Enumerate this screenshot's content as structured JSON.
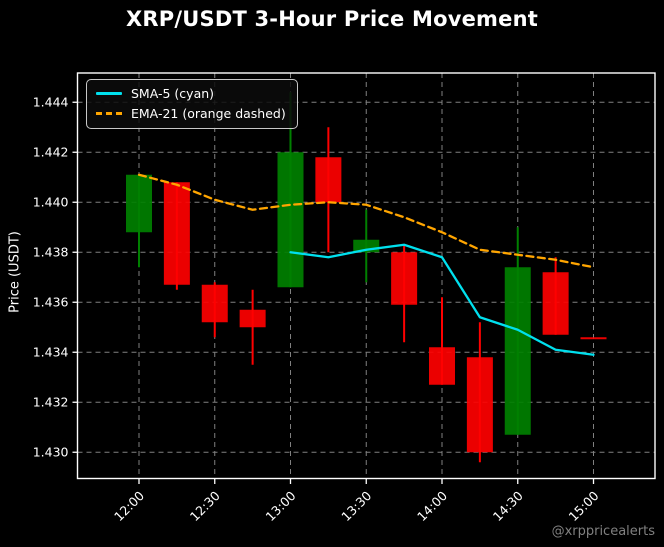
{
  "title": "XRP/USDT 3-Hour Price Movement",
  "watermark": "@xrppricealerts",
  "legend": {
    "items": [
      {
        "label": "SMA-5 (cyan)",
        "swatch": "solid-cyan-line"
      },
      {
        "label": "EMA-21 (orange dashed)",
        "swatch": "dashed-orange-line"
      }
    ]
  },
  "axes": {
    "y_label": "Price (USDT)",
    "y_tick_labels": [
      "1.430",
      "1.432",
      "1.434",
      "1.436",
      "1.438",
      "1.440",
      "1.442",
      "1.444"
    ],
    "x_tick_labels": [
      "12:00",
      "12:30",
      "13:00",
      "13:30",
      "14:00",
      "14:30",
      "15:00"
    ]
  },
  "colors": {
    "background": "#000000",
    "up_candle": "#008000",
    "down_candle": "#ff0000",
    "sma_line": "#00e0ee",
    "ema_line": "#ffa500",
    "grid": "#a0a0a0",
    "spine": "#ffffff",
    "text": "#ffffff",
    "watermark_text": "#808080"
  },
  "chart_data": {
    "type": "candlestick",
    "title": "XRP/USDT 3-Hour Price Movement",
    "ylabel": "Price (USDT)",
    "x": [
      "12:00",
      "12:15",
      "12:30",
      "12:45",
      "13:00",
      "13:15",
      "13:30",
      "13:45",
      "14:00",
      "14:15",
      "14:30",
      "14:45",
      "15:00"
    ],
    "ohlc_order": [
      "open",
      "high",
      "low",
      "close"
    ],
    "ohlc": [
      [
        1.4388,
        1.4411,
        1.4374,
        1.4411
      ],
      [
        1.4408,
        1.4408,
        1.4365,
        1.4367
      ],
      [
        1.4367,
        1.4368,
        1.4346,
        1.4352
      ],
      [
        1.4357,
        1.4365,
        1.4335,
        1.435
      ],
      [
        1.4366,
        1.4444,
        1.4366,
        1.442
      ],
      [
        1.4418,
        1.443,
        1.438,
        1.44
      ],
      [
        1.438,
        1.4397,
        1.4368,
        1.4385
      ],
      [
        1.438,
        1.4383,
        1.4344,
        1.4359
      ],
      [
        1.4342,
        1.4362,
        1.4327,
        1.4327
      ],
      [
        1.4338,
        1.4352,
        1.4296,
        1.43
      ],
      [
        1.4307,
        1.439,
        1.4307,
        1.4374
      ],
      [
        1.4372,
        1.4378,
        1.4347,
        1.4347
      ],
      [
        1.4346,
        1.4346,
        1.4346,
        1.4346
      ]
    ],
    "series": [
      {
        "name": "SMA-5",
        "type": "line",
        "style": "solid",
        "color_key": "sma_line",
        "start_index": 4,
        "values": [
          1.438,
          1.4378,
          1.4381,
          1.4383,
          1.4378,
          1.4354,
          1.4349,
          1.4341,
          1.4339
        ]
      },
      {
        "name": "EMA-21",
        "type": "line",
        "style": "dashed",
        "color_key": "ema_line",
        "start_index": 0,
        "values": [
          1.4411,
          1.4407,
          1.4401,
          1.4397,
          1.4399,
          1.44,
          1.4399,
          1.4394,
          1.4388,
          1.4381,
          1.4379,
          1.4377,
          1.4374
        ]
      }
    ],
    "y_ticks": [
      1.43,
      1.432,
      1.434,
      1.436,
      1.438,
      1.44,
      1.442,
      1.444
    ],
    "x_tick_indices": [
      0,
      2,
      4,
      6,
      8,
      10,
      12
    ],
    "ylim": [
      1.42895,
      1.44517
    ],
    "grid": true,
    "legend_position": "upper left"
  }
}
